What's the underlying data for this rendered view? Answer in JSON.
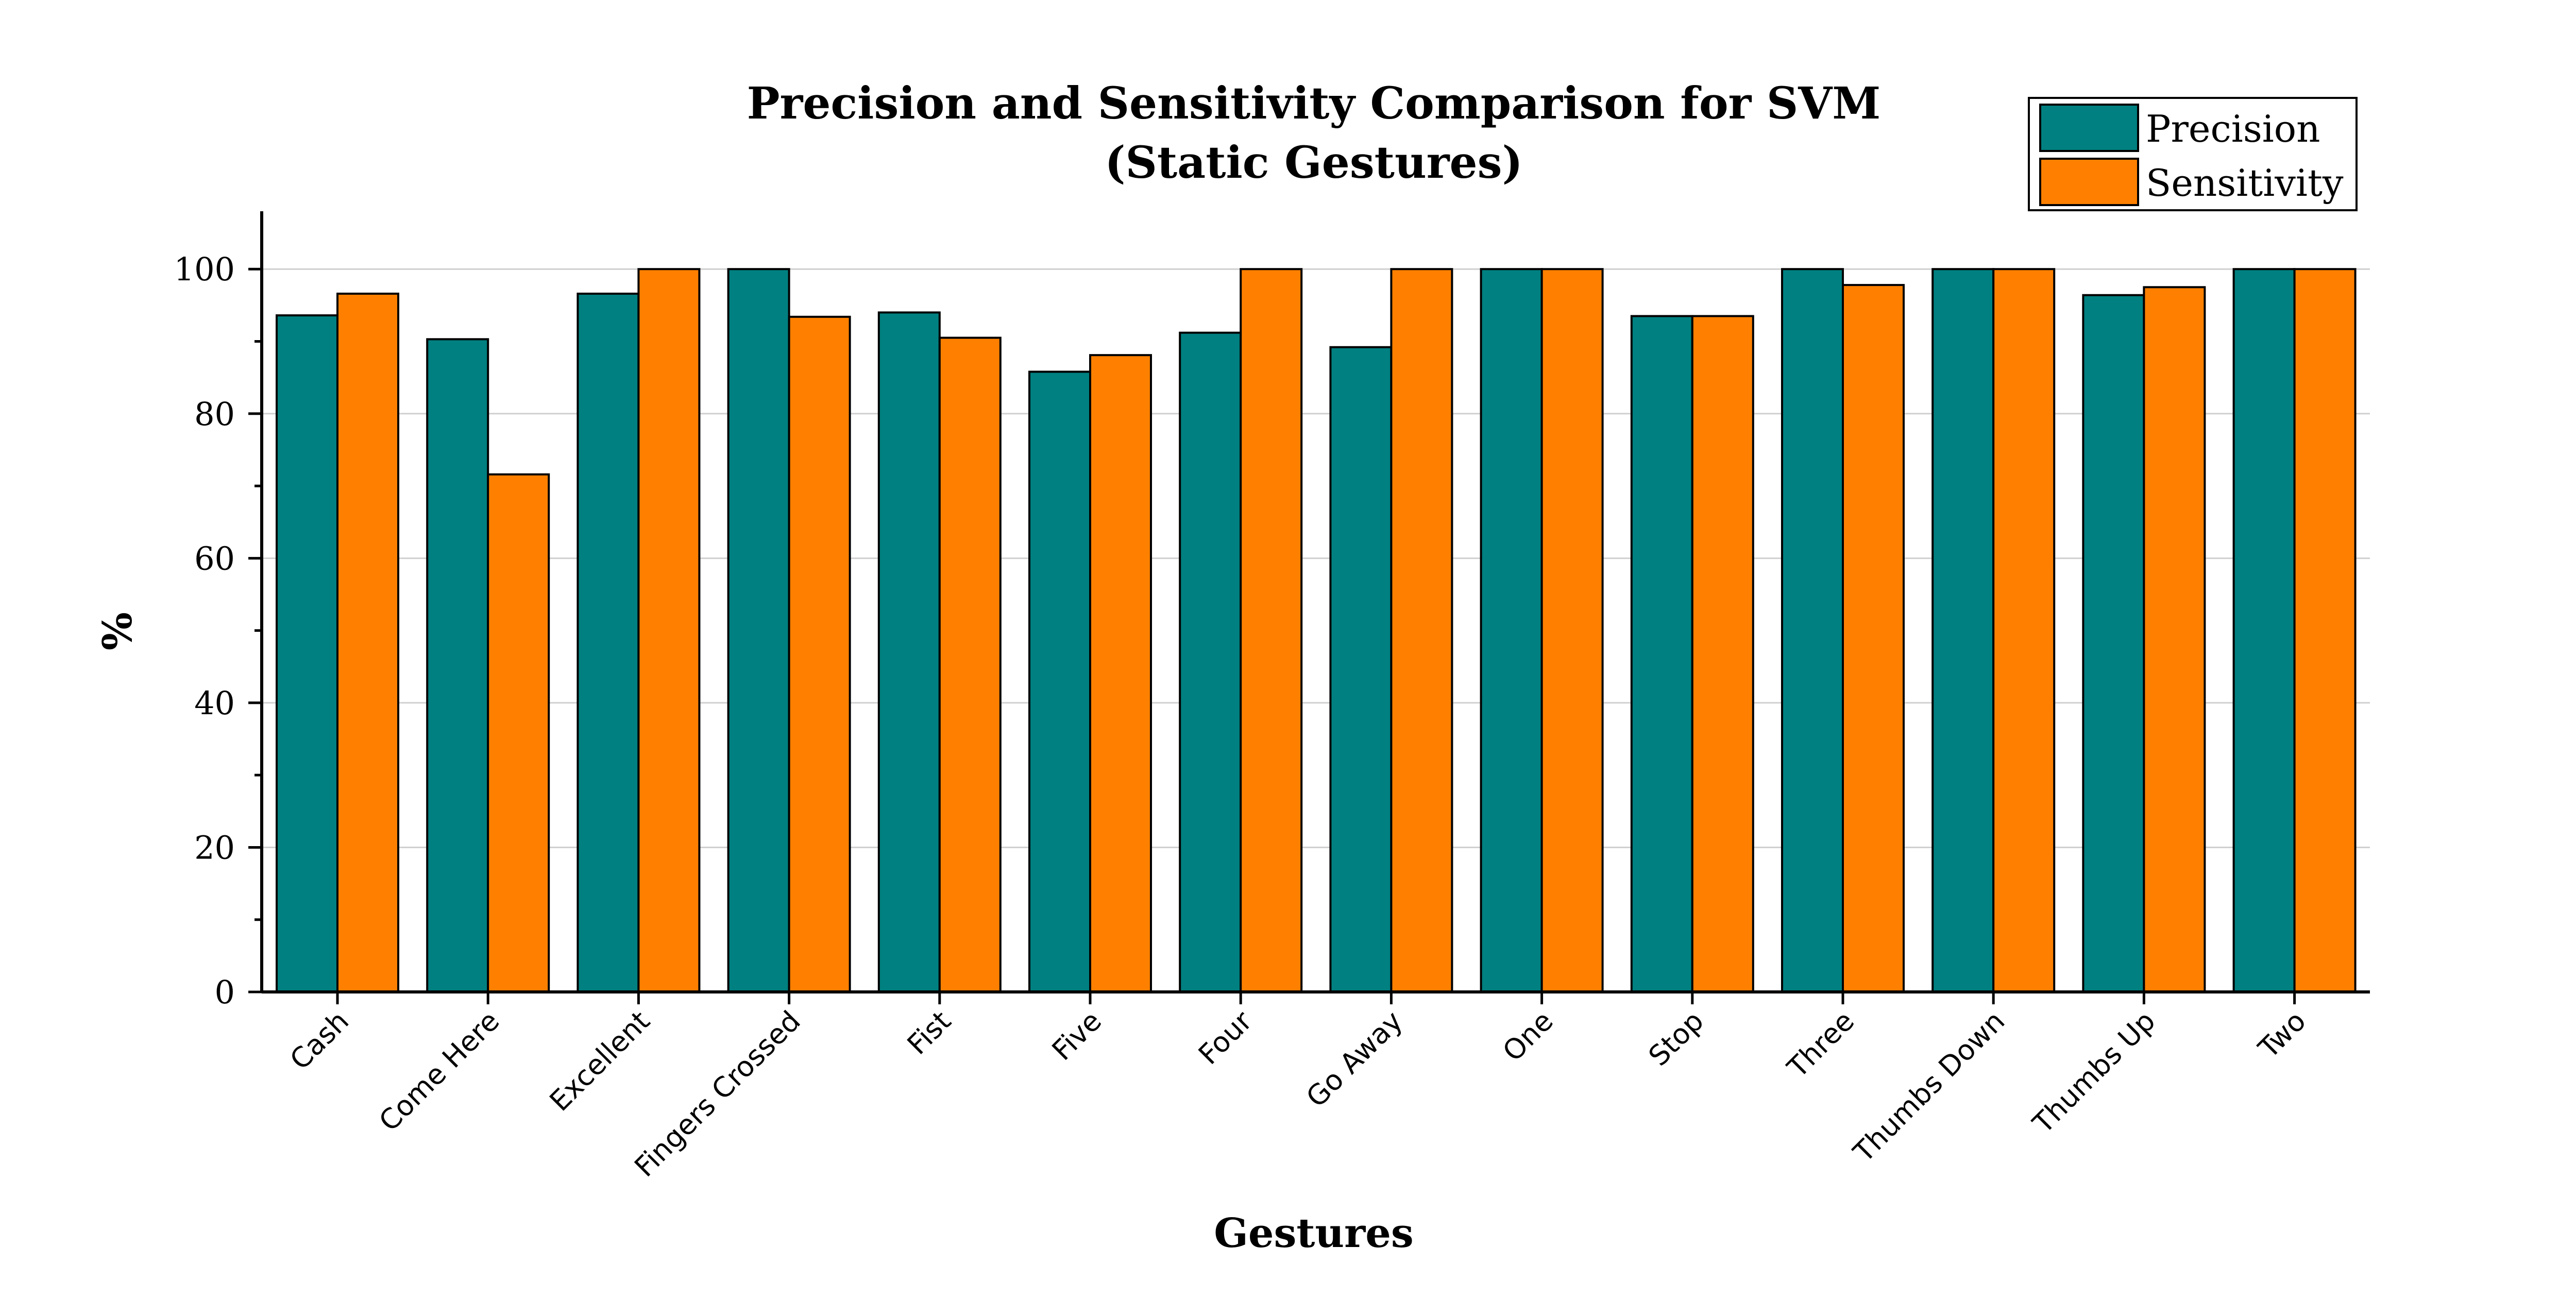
{
  "chart_data": {
    "type": "bar",
    "title": "Precision and Sensitivity Comparison for SVM",
    "subtitle": "(Static Gestures)",
    "xlabel": "Gestures",
    "ylabel": "%",
    "ylim": [
      0,
      108
    ],
    "yticks": [
      0,
      20,
      40,
      60,
      80,
      100
    ],
    "grid": true,
    "legend_position": "top-right",
    "categories": [
      "Cash",
      "Come Here",
      "Excellent",
      "Fingers Crossed",
      "Fist",
      "Five",
      "Four",
      "Go Away",
      "One",
      "Stop",
      "Three",
      "Thumbs Down",
      "Thumbs Up",
      "Two"
    ],
    "series": [
      {
        "name": "Precision",
        "color": "#008080",
        "values": [
          93.6,
          90.3,
          96.6,
          100,
          94.0,
          85.8,
          91.2,
          89.2,
          100,
          93.5,
          100,
          100,
          96.4,
          100
        ]
      },
      {
        "name": "Sensitivity",
        "color": "#ff8000",
        "values": [
          96.6,
          71.6,
          100,
          93.4,
          90.5,
          88.1,
          100,
          100,
          100,
          93.5,
          97.8,
          100,
          97.5,
          100
        ]
      }
    ]
  }
}
